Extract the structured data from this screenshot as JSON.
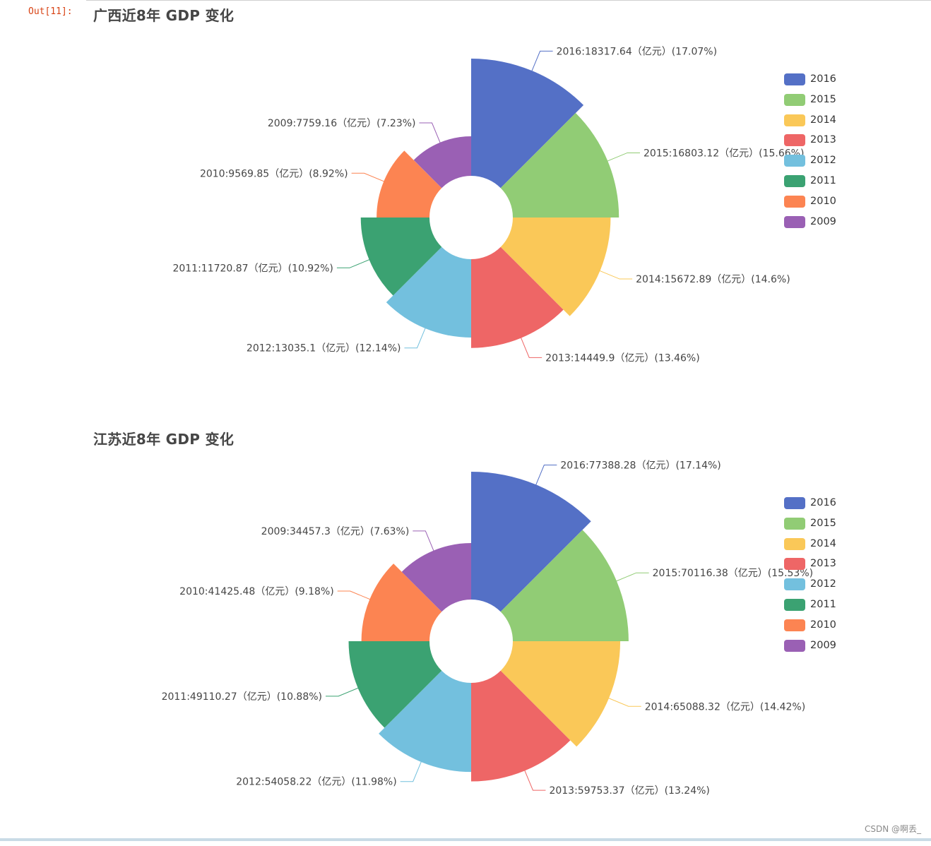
{
  "notebook": {
    "out_prompt": "Out[11]:",
    "watermark": "CSDN @啊丢_"
  },
  "chart_data": [
    {
      "type": "pie",
      "variant": "nightingale-rose",
      "title": "广西近8年 GDP 变化",
      "legend_position": "right",
      "categories": [
        "2016",
        "2015",
        "2014",
        "2013",
        "2012",
        "2011",
        "2010",
        "2009"
      ],
      "values": [
        18317.64,
        16803.12,
        15672.89,
        14449.9,
        13035.1,
        11720.87,
        9569.85,
        7759.16
      ],
      "percents": [
        "17.07%",
        "15.66%",
        "14.6%",
        "13.46%",
        "12.14%",
        "10.92%",
        "8.92%",
        "7.23%"
      ],
      "labels": [
        "2016:18317.64（亿元）(17.07%)",
        "2015:16803.12（亿元）(15.66%)",
        "2014:15672.89（亿元）(14.6%)",
        "2013:14449.9（亿元）(13.46%)",
        "2012:13035.1（亿元）(12.14%)",
        "2011:11720.87（亿元）(10.92%)",
        "2010:9569.85（亿元）(8.92%)",
        "2009:7759.16（亿元）(7.23%)"
      ],
      "colors": [
        "#5470c6",
        "#91cc75",
        "#fac858",
        "#ee6666",
        "#73c0de",
        "#3ba272",
        "#fc8452",
        "#9a60b4"
      ]
    },
    {
      "type": "pie",
      "variant": "nightingale-rose",
      "title": "江苏近8年 GDP 变化",
      "legend_position": "right",
      "categories": [
        "2016",
        "2015",
        "2014",
        "2013",
        "2012",
        "2011",
        "2010",
        "2009"
      ],
      "values": [
        77388.28,
        70116.38,
        65088.32,
        59753.37,
        54058.22,
        49110.27,
        41425.48,
        34457.3
      ],
      "percents": [
        "17.14%",
        "15.53%",
        "14.42%",
        "13.24%",
        "11.98%",
        "10.88%",
        "9.18%",
        "7.63%"
      ],
      "labels": [
        "2016:77388.28（亿元）(17.14%)",
        "2015:70116.38（亿元）(15.53%)",
        "2014:65088.32（亿元）(14.42%)",
        "2013:59753.37（亿元）(13.24%)",
        "2012:54058.22（亿元）(11.98%)",
        "2011:49110.27（亿元）(10.88%)",
        "2010:41425.48（亿元）(9.18%)",
        "2009:34457.3（亿元）(7.63%)"
      ],
      "colors": [
        "#5470c6",
        "#91cc75",
        "#fac858",
        "#ee6666",
        "#73c0de",
        "#3ba272",
        "#fc8452",
        "#9a60b4"
      ]
    }
  ]
}
